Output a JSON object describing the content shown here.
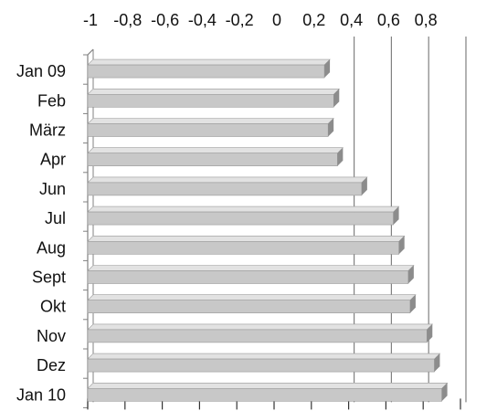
{
  "chart_data": {
    "type": "bar",
    "orientation": "horizontal",
    "style": "3d",
    "title": "",
    "xlabel": "",
    "ylabel": "",
    "categories": [
      "Jan 09",
      "Feb",
      "März",
      "Apr",
      "Jun",
      "Jul",
      "Aug",
      "Sept",
      "Okt",
      "Nov",
      "Dez",
      "Jan 10"
    ],
    "values": [
      0.27,
      0.32,
      0.29,
      0.34,
      0.47,
      0.64,
      0.67,
      0.72,
      0.73,
      0.82,
      0.86,
      0.9
    ],
    "xlim": [
      -1,
      1
    ],
    "x_ticks": [
      -1,
      -0.8,
      -0.6,
      -0.4,
      -0.2,
      0,
      0.2,
      0.4,
      0.6,
      0.8
    ],
    "x_tick_labels": [
      "-1",
      "-0,8",
      "-0,6",
      "-0,4",
      "-0,2",
      "0",
      "0,2",
      "0,4",
      "0,6",
      "0,8"
    ],
    "x_axis_position": "top",
    "grid": true,
    "legend": "none",
    "colors": {
      "bar_face": "#c8c8c8",
      "bar_top": "#e2e2e2",
      "bar_side": "#8c8c8c",
      "grid": "#808080",
      "text": "#111111"
    }
  }
}
